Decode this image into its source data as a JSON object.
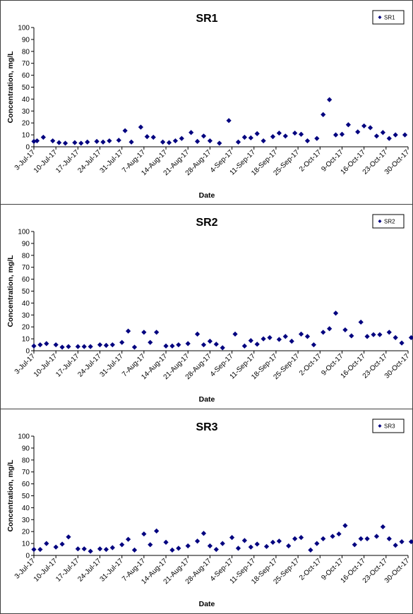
{
  "chart_data": [
    {
      "type": "scatter",
      "title": "SR1",
      "xlabel": "Date",
      "ylabel": "Concentration, mg/L",
      "ylim": [
        0,
        100
      ],
      "yticks": [
        "0",
        "10",
        "20",
        "30",
        "40",
        "50",
        "60",
        "70",
        "80",
        "90",
        "100"
      ],
      "x_tick_labels": [
        "3-Jul-17",
        "10-Jul-17",
        "17-Jul-17",
        "24-Jul-17",
        "31-Jul-17",
        "7-Aug-17",
        "14-Aug-17",
        "21-Aug-17",
        "28-Aug-17",
        "4-Sep-17",
        "11-Sep-17",
        "18-Sep-17",
        "25-Sep-17",
        "2-Oct-17",
        "9-Oct-17",
        "16-Oct-17",
        "23-Oct-17",
        "30-Oct-17"
      ],
      "legend": "top-right",
      "series": [
        {
          "name": "SR1",
          "color": "#00007f",
          "marker": "diamond",
          "x": [
            "3-Jul-17",
            "4-Jul-17",
            "6-Jul-17",
            "9-Jul-17",
            "11-Jul-17",
            "13-Jul-17",
            "16-Jul-17",
            "18-Jul-17",
            "20-Jul-17",
            "23-Jul-17",
            "25-Jul-17",
            "27-Jul-17",
            "30-Jul-17",
            "1-Aug-17",
            "3-Aug-17",
            "6-Aug-17",
            "8-Aug-17",
            "10-Aug-17",
            "13-Aug-17",
            "15-Aug-17",
            "17-Aug-17",
            "19-Aug-17",
            "22-Aug-17",
            "24-Aug-17",
            "26-Aug-17",
            "28-Aug-17",
            "31-Aug-17",
            "3-Sep-17",
            "6-Sep-17",
            "8-Sep-17",
            "10-Sep-17",
            "12-Sep-17",
            "14-Sep-17",
            "17-Sep-17",
            "19-Sep-17",
            "21-Sep-17",
            "24-Sep-17",
            "26-Sep-17",
            "28-Sep-17",
            "1-Oct-17",
            "3-Oct-17",
            "5-Oct-17",
            "7-Oct-17",
            "9-Oct-17",
            "11-Oct-17",
            "14-Oct-17",
            "16-Oct-17",
            "18-Oct-17",
            "20-Oct-17",
            "22-Oct-17",
            "24-Oct-17",
            "26-Oct-17",
            "29-Oct-17"
          ],
          "y": [
            4.5,
            5,
            8,
            5,
            3.5,
            3,
            3.5,
            3,
            4,
            4.5,
            4,
            5,
            5.5,
            13.5,
            4,
            16.5,
            8.5,
            8,
            4,
            3.5,
            5,
            7,
            12,
            4.5,
            9,
            5,
            3,
            22,
            4,
            8,
            7.5,
            11,
            5,
            8.5,
            11.5,
            9,
            11.5,
            10.5,
            5,
            7,
            27,
            39.5,
            10,
            10.5,
            18.5,
            12.5,
            17.5,
            16,
            9,
            12,
            7,
            10,
            10
          ]
        }
      ]
    },
    {
      "type": "scatter",
      "title": "SR2",
      "xlabel": "Date",
      "ylabel": "Concentration, mg/L",
      "ylim": [
        0,
        100
      ],
      "yticks": [
        "0",
        "10",
        "20",
        "30",
        "40",
        "50",
        "60",
        "70",
        "80",
        "90",
        "100"
      ],
      "x_tick_labels": [
        "3-Jul-17",
        "10-Jul-17",
        "17-Jul-17",
        "24-Jul-17",
        "31-Jul-17",
        "7-Aug-17",
        "14-Aug-17",
        "21-Aug-17",
        "28-Aug-17",
        "4-Sep-17",
        "11-Sep-17",
        "18-Sep-17",
        "25-Sep-17",
        "2-Oct-17",
        "9-Oct-17",
        "16-Oct-17",
        "23-Oct-17",
        "30-Oct-17"
      ],
      "legend": "top-right",
      "series": [
        {
          "name": "SR2",
          "color": "#00007f",
          "marker": "diamond",
          "x": [
            "3-Jul-17",
            "5-Jul-17",
            "7-Jul-17",
            "10-Jul-17",
            "12-Jul-17",
            "14-Jul-17",
            "17-Jul-17",
            "19-Jul-17",
            "21-Jul-17",
            "24-Jul-17",
            "26-Jul-17",
            "28-Jul-17",
            "31-Jul-17",
            "2-Aug-17",
            "4-Aug-17",
            "7-Aug-17",
            "9-Aug-17",
            "11-Aug-17",
            "14-Aug-17",
            "16-Aug-17",
            "18-Aug-17",
            "21-Aug-17",
            "24-Aug-17",
            "26-Aug-17",
            "28-Aug-17",
            "30-Aug-17",
            "1-Sep-17",
            "5-Sep-17",
            "8-Sep-17",
            "10-Sep-17",
            "12-Sep-17",
            "14-Sep-17",
            "16-Sep-17",
            "19-Sep-17",
            "21-Sep-17",
            "23-Sep-17",
            "26-Sep-17",
            "28-Sep-17",
            "30-Sep-17",
            "3-Oct-17",
            "5-Oct-17",
            "7-Oct-17",
            "10-Oct-17",
            "12-Oct-17",
            "15-Oct-17",
            "17-Oct-17",
            "19-Oct-17",
            "21-Oct-17",
            "24-Oct-17",
            "26-Oct-17",
            "28-Oct-17",
            "31-Oct-17"
          ],
          "y": [
            4,
            5,
            6,
            5,
            3,
            3.5,
            3.5,
            3.5,
            3.5,
            5,
            4.5,
            5,
            7,
            16.5,
            3,
            15.5,
            7,
            15.5,
            4,
            4,
            5,
            6,
            14,
            5,
            8,
            5.5,
            2.5,
            14,
            4,
            8.5,
            5.5,
            10,
            11,
            9.5,
            12,
            8,
            14,
            12,
            5,
            15.5,
            18.5,
            31.5,
            17.5,
            12.5,
            24,
            12,
            13.5,
            13.5,
            15.5,
            11,
            6.5,
            11
          ]
        }
      ]
    },
    {
      "type": "scatter",
      "title": "SR3",
      "xlabel": "Date",
      "ylabel": "Concentration, mg/L",
      "ylim": [
        0,
        100
      ],
      "yticks": [
        "0",
        "10",
        "20",
        "30",
        "40",
        "50",
        "60",
        "70",
        "80",
        "90",
        "100"
      ],
      "x_tick_labels": [
        "3-Jul-17",
        "10-Jul-17",
        "17-Jul-17",
        "24-Jul-17",
        "31-Jul-17",
        "7-Aug-17",
        "14-Aug-17",
        "21-Aug-17",
        "28-Aug-17",
        "4-Sep-17",
        "11-Sep-17",
        "18-Sep-17",
        "25-Sep-17",
        "2-Oct-17",
        "9-Oct-17",
        "16-Oct-17",
        "23-Oct-17",
        "30-Oct-17"
      ],
      "legend": "top-right",
      "series": [
        {
          "name": "SR3",
          "color": "#00007f",
          "marker": "diamond",
          "x": [
            "3-Jul-17",
            "5-Jul-17",
            "7-Jul-17",
            "10-Jul-17",
            "12-Jul-17",
            "14-Jul-17",
            "17-Jul-17",
            "19-Jul-17",
            "21-Jul-17",
            "24-Jul-17",
            "26-Jul-17",
            "28-Jul-17",
            "31-Jul-17",
            "2-Aug-17",
            "4-Aug-17",
            "7-Aug-17",
            "9-Aug-17",
            "11-Aug-17",
            "14-Aug-17",
            "16-Aug-17",
            "18-Aug-17",
            "21-Aug-17",
            "24-Aug-17",
            "26-Aug-17",
            "28-Aug-17",
            "30-Aug-17",
            "1-Sep-17",
            "4-Sep-17",
            "6-Sep-17",
            "8-Sep-17",
            "10-Sep-17",
            "12-Sep-17",
            "15-Sep-17",
            "17-Sep-17",
            "19-Sep-17",
            "22-Sep-17",
            "24-Sep-17",
            "26-Sep-17",
            "29-Sep-17",
            "1-Oct-17",
            "3-Oct-17",
            "6-Oct-17",
            "8-Oct-17",
            "10-Oct-17",
            "13-Oct-17",
            "15-Oct-17",
            "17-Oct-17",
            "20-Oct-17",
            "22-Oct-17",
            "24-Oct-17",
            "26-Oct-17",
            "28-Oct-17",
            "31-Oct-17"
          ],
          "y": [
            5,
            5,
            10,
            7,
            9.5,
            15.5,
            5.5,
            5.5,
            3.5,
            5.5,
            5,
            6.5,
            9,
            13.5,
            4.5,
            18,
            9,
            20.5,
            11,
            4.5,
            6,
            8,
            12,
            18.5,
            8,
            5,
            10,
            15,
            6,
            12.5,
            7,
            9.5,
            7.5,
            11,
            12,
            8,
            14,
            15,
            4.5,
            10,
            14,
            16,
            18,
            25,
            9,
            14,
            14,
            16,
            24,
            14,
            8.5,
            11.5,
            11.5
          ]
        }
      ]
    }
  ]
}
